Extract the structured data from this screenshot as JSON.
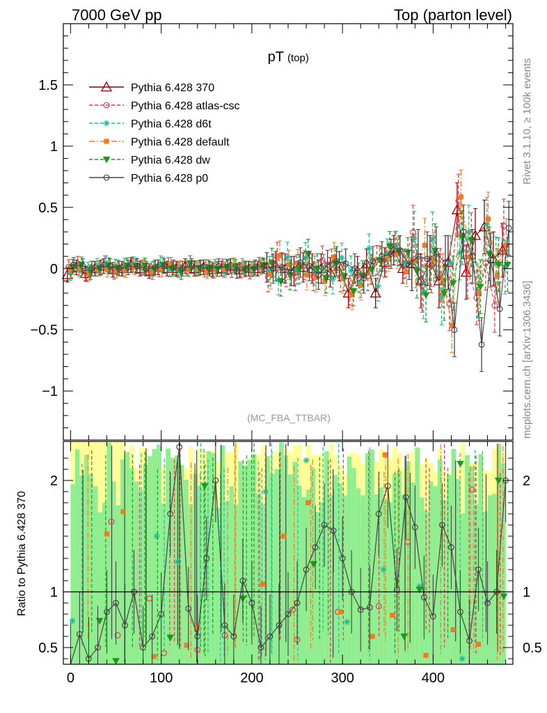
{
  "header": {
    "left": "7000 GeV pp",
    "right": "Top (parton level)"
  },
  "side_labels": {
    "rivet": "Rivet 3.1.10, ≥ 100k events",
    "mcplots": "mcplots.cern.ch [arXiv:1306.3436]"
  },
  "chart_data": [
    {
      "type": "scatter",
      "title": "pT",
      "title_sub": "(top)",
      "analysis_label": "(MC_FBA_TTBAR)",
      "ylim": [
        -1.4,
        2.0
      ],
      "xlim": [
        -8,
        488
      ],
      "yticks": [
        1.5,
        1,
        0.5,
        0,
        -0.5,
        -1
      ],
      "ytick_labels": [
        "1.5",
        "1",
        "0.5",
        "0",
        "−0.5",
        "−1"
      ],
      "grid": false,
      "legend_position": "top-left",
      "series": [
        {
          "name": "Pythia 6.428 370",
          "color": "#8b0000",
          "marker": "triangle-open",
          "line": "solid"
        },
        {
          "name": "Pythia 6.428 atlas-csc",
          "color": "#e8384f",
          "marker": "circle-open",
          "line": "dashed"
        },
        {
          "name": "Pythia 6.428 d6t",
          "color": "#1abc9c",
          "marker": "star",
          "line": "dashed"
        },
        {
          "name": "Pythia 6.428 default",
          "color": "#f07b24",
          "marker": "square",
          "line": "dashdot"
        },
        {
          "name": "Pythia 6.428 dw",
          "color": "#1a9c1a",
          "marker": "triangle-down",
          "line": "dashed"
        },
        {
          "name": "Pythia 6.428 p0",
          "color": "#444444",
          "marker": "circle-open",
          "line": "solid"
        }
      ],
      "x": [
        0,
        10,
        20,
        30,
        40,
        50,
        60,
        70,
        80,
        90,
        100,
        110,
        120,
        130,
        140,
        150,
        160,
        170,
        180,
        190,
        200,
        210,
        220,
        230,
        240,
        250,
        260,
        270,
        280,
        290,
        300,
        310,
        320,
        330,
        340,
        350,
        360,
        370,
        380,
        390,
        400,
        410,
        420,
        430,
        440,
        450,
        460,
        470,
        480
      ],
      "p0_values": [
        0.03,
        0.02,
        0.0,
        0.01,
        0.02,
        0.0,
        0.01,
        0.02,
        0.0,
        0.01,
        0.02,
        0.01,
        0.0,
        0.02,
        0.01,
        0.0,
        0.02,
        0.01,
        -0.02,
        0.0,
        0.01,
        0.02,
        0.0,
        0.01,
        -0.02,
        0.05,
        0.02,
        -0.05,
        0.03,
        0.06,
        0.04,
        0.0,
        -0.08,
        0.06,
        0.1,
        0.12,
        0.15,
        0.03,
        0.1,
        0.08,
        0.12,
        0.05,
        -0.5,
        0.3,
        0.1,
        -0.62,
        0.07,
        -0.33,
        0.33
      ],
      "r370_values": [
        -0.05,
        0.01,
        -0.04,
        0.0,
        0.02,
        -0.01,
        0.0,
        0.03,
        0.0,
        -0.02,
        0.01,
        0.0,
        0.0,
        0.02,
        0.0,
        0.01,
        -0.01,
        0.0,
        0.02,
        -0.01,
        0.0,
        0.0,
        0.01,
        0.02,
        0.0,
        -0.02,
        0.01,
        0.0,
        0.0,
        -0.03,
        0.02,
        -0.2,
        -0.02,
        0.04,
        -0.2,
        0.05,
        0.15,
        0.0,
        0.04,
        -0.1,
        0.05,
        -0.1,
        0.05,
        0.48,
        -0.03,
        0.27,
        0.34,
        0.08,
        0.15
      ]
    },
    {
      "type": "scatter",
      "ylabel": "Ratio to Pythia 6.428 370",
      "xlabel": "",
      "ylim": [
        0.35,
        2.35
      ],
      "yticks": [
        2,
        1,
        0.5
      ],
      "ytick_labels": [
        "2",
        "1",
        "0.5"
      ],
      "xticks": [
        0,
        100,
        200,
        300,
        400
      ],
      "xtick_labels": [
        "0",
        "100",
        "200",
        "300",
        "400"
      ],
      "reference_line": 1,
      "band_colors": {
        "one_sigma": "#90ee90",
        "two_sigma": "#ffff99"
      },
      "ratio_p0": [
        0.3,
        0.62,
        0.4,
        0.5,
        0.82,
        0.9,
        0.7,
        1.0,
        0.5,
        0.6,
        0.8,
        1.7,
        2.3,
        0.85,
        0.6,
        1.3,
        2.0,
        0.7,
        0.6,
        1.1,
        0.9,
        0.5,
        0.6,
        0.7,
        0.8,
        0.9,
        1.2,
        1.4,
        1.6,
        1.55,
        1.3,
        1.0,
        0.84,
        0.86,
        1.7,
        1.95,
        1.02,
        1.85,
        1.58,
        0.95,
        0.78,
        1.6,
        1.4,
        0.82,
        0.56,
        1.2,
        0.9,
        1.0,
        2.0
      ],
      "ratio_370_x": [
        0,
        480
      ],
      "other_points": [
        {
          "s": 1,
          "x": 45,
          "y": 1.63
        },
        {
          "s": 1,
          "x": 52,
          "y": 0.61
        },
        {
          "s": 1,
          "x": 87,
          "y": 0.94
        },
        {
          "s": 1,
          "x": 103,
          "y": 0.45
        },
        {
          "s": 1,
          "x": 140,
          "y": 0.48
        },
        {
          "s": 1,
          "x": 170,
          "y": 0.61
        },
        {
          "s": 1,
          "x": 245,
          "y": 0.84
        },
        {
          "s": 1,
          "x": 250,
          "y": 0.57
        },
        {
          "s": 1,
          "x": 295,
          "y": 0.82
        },
        {
          "s": 1,
          "x": 340,
          "y": 0.87
        },
        {
          "s": 1,
          "x": 372,
          "y": 1.45
        },
        {
          "s": 1,
          "x": 443,
          "y": 1.92
        },
        {
          "s": 2,
          "x": 2,
          "y": 0.74
        },
        {
          "s": 2,
          "x": 95,
          "y": 1.5
        },
        {
          "s": 2,
          "x": 118,
          "y": 1.27
        },
        {
          "s": 2,
          "x": 215,
          "y": 1.9
        },
        {
          "s": 2,
          "x": 260,
          "y": 2.18
        },
        {
          "s": 2,
          "x": 305,
          "y": 0.73
        },
        {
          "s": 2,
          "x": 345,
          "y": 1.2
        },
        {
          "s": 2,
          "x": 385,
          "y": 1.05
        },
        {
          "s": 2,
          "x": 432,
          "y": 0.4
        },
        {
          "s": 3,
          "x": 40,
          "y": 1.52
        },
        {
          "s": 3,
          "x": 58,
          "y": 1.72
        },
        {
          "s": 3,
          "x": 92,
          "y": 0.42
        },
        {
          "s": 3,
          "x": 128,
          "y": 0.52
        },
        {
          "s": 3,
          "x": 140,
          "y": 0.68
        },
        {
          "s": 3,
          "x": 212,
          "y": 1.07
        },
        {
          "s": 3,
          "x": 235,
          "y": 1.5
        },
        {
          "s": 3,
          "x": 262,
          "y": 1.8
        },
        {
          "s": 3,
          "x": 298,
          "y": 0.82
        },
        {
          "s": 3,
          "x": 333,
          "y": 0.6
        },
        {
          "s": 3,
          "x": 347,
          "y": 2.23
        },
        {
          "s": 3,
          "x": 355,
          "y": 0.79
        },
        {
          "s": 3,
          "x": 392,
          "y": 0.43
        },
        {
          "s": 3,
          "x": 422,
          "y": 0.66
        },
        {
          "s": 3,
          "x": 450,
          "y": 0.53
        },
        {
          "s": 4,
          "x": 32,
          "y": 0.74
        },
        {
          "s": 4,
          "x": 50,
          "y": 0.38
        },
        {
          "s": 4,
          "x": 110,
          "y": 0.59
        },
        {
          "s": 4,
          "x": 148,
          "y": 1.95
        },
        {
          "s": 4,
          "x": 190,
          "y": 0.94
        },
        {
          "s": 4,
          "x": 268,
          "y": 1.25
        },
        {
          "s": 4,
          "x": 368,
          "y": 0.6
        },
        {
          "s": 4,
          "x": 385,
          "y": 1.02
        },
        {
          "s": 4,
          "x": 430,
          "y": 2.15
        },
        {
          "s": 4,
          "x": 472,
          "y": 2.0
        },
        {
          "s": 4,
          "x": 478,
          "y": 0.96
        }
      ]
    }
  ]
}
